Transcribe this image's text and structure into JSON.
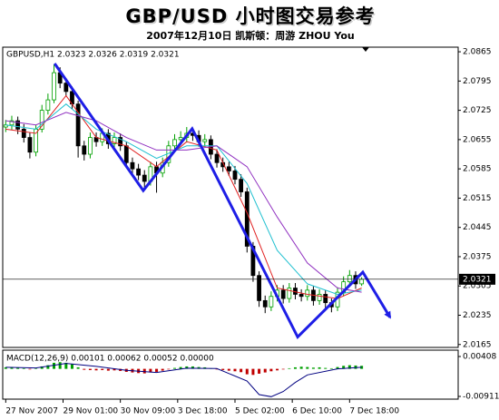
{
  "chart_data": [
    {
      "type": "candlestick",
      "title": "GBP/USD 小时图交易参考",
      "subtitle": "2007年12月10日 凯斯顿：周游 ZHOU You",
      "header": "GBPUSD,H1  2.0323 2.0326 2.0319 2.0321",
      "xlim": [
        -0.5,
        75
      ],
      "xticks": [
        {
          "value": 0,
          "label": "27 Nov 2007"
        },
        {
          "value": 9.5,
          "label": "29 Nov 01:00"
        },
        {
          "value": 19,
          "label": "30 Nov 09:00"
        },
        {
          "value": 28.5,
          "label": "3 Dec 18:00"
        },
        {
          "value": 38,
          "label": "5 Dec 02:00"
        },
        {
          "value": 47.5,
          "label": "6 Dec 10:00"
        },
        {
          "value": 57,
          "label": "7 Dec 18:00"
        }
      ],
      "ylim": [
        2.0158,
        2.0876
      ],
      "yticks": [
        2.0865,
        2.0795,
        2.0725,
        2.0655,
        2.0585,
        2.0515,
        2.0445,
        2.0375,
        2.0305,
        2.0235,
        2.0165
      ],
      "up_color": "#00a000",
      "down_color": "#000000",
      "open": [
        2.0685,
        2.069,
        2.07,
        2.068,
        2.066,
        2.0625,
        2.068,
        2.0725,
        2.075,
        2.0815,
        2.079,
        2.077,
        2.074,
        2.064,
        2.062,
        2.066,
        2.065,
        2.067,
        2.0645,
        2.066,
        2.064,
        2.06,
        2.0585,
        2.057,
        2.0555,
        2.059,
        2.0575,
        2.06,
        2.064,
        2.0655,
        2.066,
        2.067,
        2.0665,
        2.065,
        2.0655,
        2.062,
        2.06,
        2.059,
        2.058,
        2.056,
        2.053,
        2.04,
        2.033,
        2.027,
        2.0255,
        2.028,
        2.0295,
        2.0275,
        2.03,
        2.0285,
        2.028,
        2.0295,
        2.027,
        2.0285,
        2.0265,
        2.0255,
        2.029,
        2.0315,
        2.033,
        2.031
      ],
      "high": [
        2.0702,
        2.0712,
        2.071,
        2.0692,
        2.0672,
        2.069,
        2.0738,
        2.0765,
        2.0835,
        2.0828,
        2.0802,
        2.0782,
        2.0748,
        2.0652,
        2.0672,
        2.0672,
        2.0682,
        2.068,
        2.0672,
        2.067,
        2.065,
        2.0612,
        2.0597,
        2.0582,
        2.0602,
        2.0602,
        2.0612,
        2.0652,
        2.0668,
        2.0675,
        2.0685,
        2.068,
        2.0677,
        2.0668,
        2.0665,
        2.0632,
        2.0612,
        2.0602,
        2.0592,
        2.0572,
        2.054,
        2.041,
        2.034,
        2.0282,
        2.0292,
        2.0307,
        2.0307,
        2.0312,
        2.0312,
        2.0297,
        2.0307,
        2.0305,
        2.0297,
        2.0295,
        2.0275,
        2.0302,
        2.0328,
        2.0343,
        2.034,
        2.0326
      ],
      "low": [
        2.0673,
        2.0678,
        2.0668,
        2.0648,
        2.061,
        2.0615,
        2.0672,
        2.0715,
        2.0742,
        2.0778,
        2.0758,
        2.0728,
        2.0612,
        2.0605,
        2.061,
        2.0638,
        2.064,
        2.0633,
        2.0633,
        2.0628,
        2.0588,
        2.0573,
        2.0558,
        2.0535,
        2.0545,
        2.0528,
        2.0565,
        2.059,
        2.063,
        2.0642,
        2.0648,
        2.0652,
        2.0638,
        2.064,
        2.0608,
        2.0588,
        2.0578,
        2.0568,
        2.0548,
        2.0518,
        2.0385,
        2.0315,
        2.0255,
        2.024,
        2.0245,
        2.0268,
        2.0263,
        2.0265,
        2.0273,
        2.0268,
        2.027,
        2.0258,
        2.026,
        2.025,
        2.0242,
        2.0245,
        2.028,
        2.0303,
        2.0298,
        2.0305
      ],
      "close": [
        2.069,
        2.07,
        2.068,
        2.066,
        2.0625,
        2.068,
        2.0725,
        2.075,
        2.0815,
        2.079,
        2.077,
        2.074,
        2.064,
        2.062,
        2.066,
        2.065,
        2.067,
        2.0645,
        2.066,
        2.064,
        2.06,
        2.0585,
        2.057,
        2.0555,
        2.059,
        2.0575,
        2.06,
        2.064,
        2.0655,
        2.066,
        2.067,
        2.0665,
        2.065,
        2.0655,
        2.062,
        2.06,
        2.059,
        2.058,
        2.056,
        2.053,
        2.04,
        2.033,
        2.027,
        2.0255,
        2.028,
        2.0295,
        2.0275,
        2.03,
        2.0285,
        2.028,
        2.0295,
        2.027,
        2.0285,
        2.0265,
        2.0255,
        2.029,
        2.0315,
        2.033,
        2.031,
        2.0321
      ],
      "moving_averages": [
        {
          "color": "#e02020",
          "x": [
            0,
            5,
            10,
            15,
            20,
            25,
            30,
            35,
            40,
            45,
            50,
            55,
            59
          ],
          "values": [
            2.068,
            2.067,
            2.076,
            2.066,
            2.064,
            2.059,
            2.065,
            2.063,
            2.048,
            2.03,
            2.0285,
            2.0275,
            2.03
          ]
        },
        {
          "color": "#20c0d0",
          "x": [
            0,
            5,
            10,
            15,
            20,
            25,
            30,
            35,
            40,
            45,
            50,
            55,
            59
          ],
          "values": [
            2.069,
            2.068,
            2.074,
            2.068,
            2.065,
            2.061,
            2.064,
            2.064,
            2.055,
            2.039,
            2.031,
            2.0285,
            2.0295
          ]
        },
        {
          "color": "#9030c0",
          "x": [
            0,
            5,
            10,
            15,
            20,
            25,
            30,
            35,
            40,
            45,
            50,
            55,
            59
          ],
          "values": [
            2.07,
            2.069,
            2.072,
            2.07,
            2.066,
            2.063,
            2.063,
            2.064,
            2.059,
            2.047,
            2.036,
            2.03,
            2.029
          ]
        }
      ],
      "trend_line": {
        "color": "#1e1ee6",
        "x": [
          8.1,
          22.8,
          30.9,
          48.4,
          59.2,
          63.7
        ],
        "values": [
          2.0837,
          2.0533,
          2.0681,
          2.0183,
          2.0338,
          2.023
        ]
      },
      "current_price": 2.0321
    },
    {
      "type": "bar",
      "header": "MACD(12,26,9) 0.00101 0.00062 0.00052 0.00000",
      "ylim": [
        -0.01001,
        0.00618
      ],
      "yticks": [
        0.00408,
        -0.00911
      ],
      "up_color": "#00a000",
      "down_color": "#c00000",
      "values": [
        0.0005,
        0.0006,
        0.0004,
        0.0002,
        -0.0002,
        0.0001,
        0.0008,
        0.0012,
        0.002,
        0.0022,
        0.002,
        0.0015,
        0.0005,
        -0.0003,
        -0.0004,
        -0.0005,
        -0.0004,
        -0.0006,
        -0.0005,
        -0.0007,
        -0.001,
        -0.0012,
        -0.0014,
        -0.0015,
        -0.0012,
        -0.001,
        -0.0006,
        -0.0002,
        0.0003,
        0.0006,
        0.0008,
        0.0008,
        0.0006,
        0.0005,
        0.0002,
        -0.0002,
        -0.0004,
        -0.0006,
        -0.0008,
        -0.0011,
        -0.0018,
        -0.002,
        -0.0016,
        -0.0012,
        -0.0008,
        -0.0005,
        -0.0002,
        0.0002,
        0.0005,
        0.0007,
        0.0006,
        0.0004,
        0.0005,
        0.0003,
        0.0002,
        0.0006,
        0.001,
        0.0012,
        0.0011,
        0.001
      ],
      "line": {
        "color": "#000080",
        "x": [
          0,
          5,
          10,
          15,
          20,
          25,
          30,
          35,
          40,
          42,
          44,
          46,
          48,
          50,
          55,
          59
        ],
        "values": [
          0.0005,
          0.0003,
          0.0018,
          0.0008,
          -0.0005,
          -0.0012,
          0.0002,
          0.0001,
          -0.004,
          -0.0085,
          -0.0092,
          -0.0075,
          -0.0045,
          -0.002,
          0.0,
          0.0005
        ]
      }
    }
  ]
}
